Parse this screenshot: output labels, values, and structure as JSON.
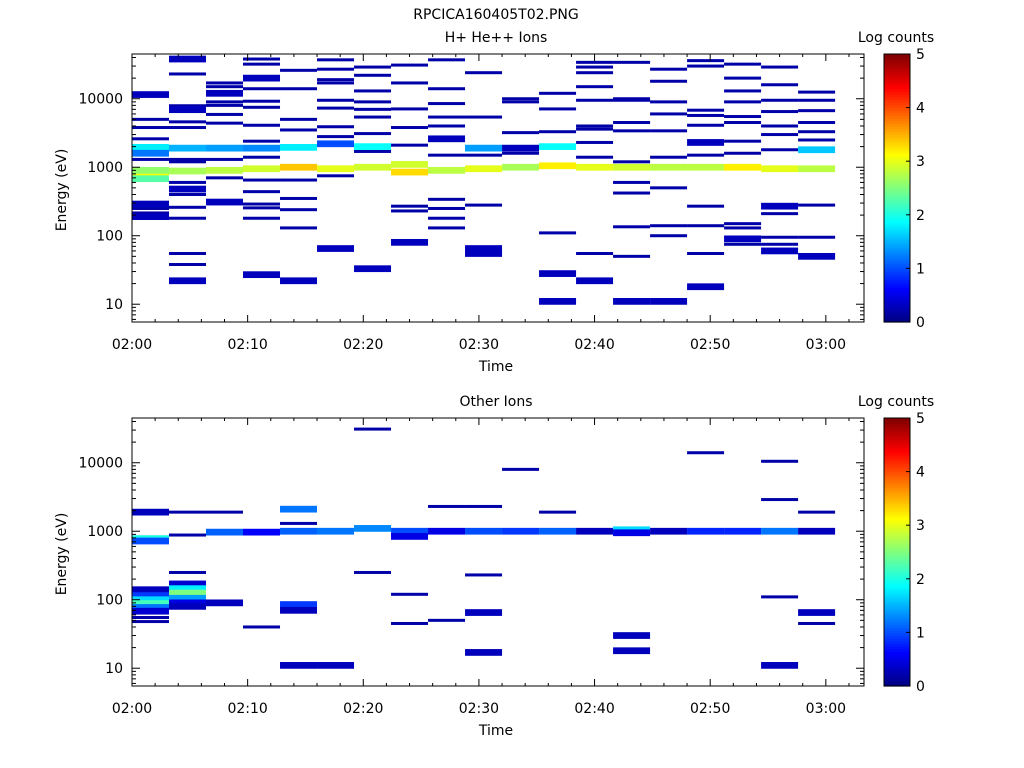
{
  "figure_title": "RPCICA160405T02.PNG",
  "colors": {
    "colormap": [
      "#00007f",
      "#0000ff",
      "#007fff",
      "#00ffff",
      "#7fff7f",
      "#ffff00",
      "#ff7f00",
      "#ff0000",
      "#7f0000"
    ]
  },
  "chart_data": [
    {
      "type": "heatmap",
      "title": "H+ He++ Ions",
      "xlabel": "Time",
      "ylabel": "Energy (eV)",
      "colorbar_label": "Log counts",
      "colorbar_ticks": [
        "0",
        "1",
        "2",
        "3",
        "4",
        "5"
      ],
      "clim": [
        0,
        5
      ],
      "y_scale": "log",
      "ylim": [
        5.5,
        45000
      ],
      "y_ticks": [
        "10",
        "100",
        "1000",
        "10000"
      ],
      "x_range_minutes": [
        0,
        63.3
      ],
      "x_ticks": [
        "02:00",
        "02:10",
        "02:20",
        "02:30",
        "02:40",
        "02:50",
        "03:00"
      ],
      "column_width_min": 3.2,
      "cells": [
        {
          "t": 0,
          "e": 780,
          "v": 3.1
        },
        {
          "t": 0,
          "e": 900,
          "v": 2.6
        },
        {
          "t": 0,
          "e": 680,
          "v": 2.3
        },
        {
          "t": 0,
          "e": 1950,
          "v": 1.8
        },
        {
          "t": 0,
          "e": 1600,
          "v": 1.2
        },
        {
          "t": 0,
          "e": 11500,
          "v": 0.3
        },
        {
          "t": 0,
          "e": 290,
          "v": 0.3
        },
        {
          "t": 0,
          "e": 190,
          "v": 0.3
        },
        {
          "t": 3.2,
          "e": 880,
          "v": 2.7
        },
        {
          "t": 3.2,
          "e": 1900,
          "v": 1.5
        },
        {
          "t": 3.2,
          "e": 7000,
          "v": 0.3
        },
        {
          "t": 3.2,
          "e": 38000,
          "v": 0.3
        },
        {
          "t": 3.2,
          "e": 22,
          "v": 0.3
        },
        {
          "t": 3.2,
          "e": 480,
          "v": 0.3
        },
        {
          "t": 6.4,
          "e": 900,
          "v": 2.8
        },
        {
          "t": 6.4,
          "e": 1900,
          "v": 1.4
        },
        {
          "t": 6.4,
          "e": 12000,
          "v": 0.3
        },
        {
          "t": 6.4,
          "e": 310,
          "v": 0.3
        },
        {
          "t": 9.6,
          "e": 950,
          "v": 2.9
        },
        {
          "t": 9.6,
          "e": 1900,
          "v": 1.3
        },
        {
          "t": 9.6,
          "e": 27,
          "v": 0.3
        },
        {
          "t": 9.6,
          "e": 20000,
          "v": 0.3
        },
        {
          "t": 12.8,
          "e": 1000,
          "v": 3.4
        },
        {
          "t": 12.8,
          "e": 1950,
          "v": 1.8
        },
        {
          "t": 12.8,
          "e": 22,
          "v": 0.3
        },
        {
          "t": 16.0,
          "e": 950,
          "v": 3.0
        },
        {
          "t": 16.0,
          "e": 2200,
          "v": 1.0
        },
        {
          "t": 16.0,
          "e": 65,
          "v": 0.3
        },
        {
          "t": 19.2,
          "e": 1000,
          "v": 2.9
        },
        {
          "t": 19.2,
          "e": 2000,
          "v": 1.9
        },
        {
          "t": 19.2,
          "e": 33,
          "v": 0.3
        },
        {
          "t": 22.4,
          "e": 850,
          "v": 3.3
        },
        {
          "t": 22.4,
          "e": 1100,
          "v": 2.9
        },
        {
          "t": 22.4,
          "e": 80,
          "v": 0.3
        },
        {
          "t": 25.6,
          "e": 900,
          "v": 2.8
        },
        {
          "t": 25.6,
          "e": 2600,
          "v": 0.3
        },
        {
          "t": 28.8,
          "e": 950,
          "v": 3.0
        },
        {
          "t": 28.8,
          "e": 1900,
          "v": 1.4
        },
        {
          "t": 28.8,
          "e": 65,
          "v": 0.3
        },
        {
          "t": 28.8,
          "e": 55,
          "v": 0.3
        },
        {
          "t": 32.0,
          "e": 1000,
          "v": 2.7
        },
        {
          "t": 32.0,
          "e": 1900,
          "v": 0.3
        },
        {
          "t": 35.2,
          "e": 1050,
          "v": 3.2
        },
        {
          "t": 35.2,
          "e": 2000,
          "v": 1.9
        },
        {
          "t": 35.2,
          "e": 11,
          "v": 0.3
        },
        {
          "t": 35.2,
          "e": 28,
          "v": 0.3
        },
        {
          "t": 38.4,
          "e": 1000,
          "v": 3.0
        },
        {
          "t": 38.4,
          "e": 22,
          "v": 0.3
        },
        {
          "t": 41.6,
          "e": 1000,
          "v": 2.9
        },
        {
          "t": 41.6,
          "e": 11,
          "v": 0.3
        },
        {
          "t": 44.8,
          "e": 1000,
          "v": 2.8
        },
        {
          "t": 44.8,
          "e": 11,
          "v": 0.3
        },
        {
          "t": 48.0,
          "e": 1000,
          "v": 2.8
        },
        {
          "t": 48.0,
          "e": 18,
          "v": 0.3
        },
        {
          "t": 48.0,
          "e": 2300,
          "v": 0.3
        },
        {
          "t": 51.2,
          "e": 1000,
          "v": 3.2
        },
        {
          "t": 51.2,
          "e": 90,
          "v": 0.3
        },
        {
          "t": 54.4,
          "e": 950,
          "v": 3.0
        },
        {
          "t": 54.4,
          "e": 270,
          "v": 0.3
        },
        {
          "t": 54.4,
          "e": 60,
          "v": 0.3
        },
        {
          "t": 57.6,
          "e": 950,
          "v": 2.8
        },
        {
          "t": 57.6,
          "e": 1800,
          "v": 1.6
        },
        {
          "t": 57.6,
          "e": 50,
          "v": 0.3
        }
      ],
      "lines": [
        {
          "t": 0,
          "e": [
            5000,
            3800,
            2600,
            1300,
            250,
            215
          ]
        },
        {
          "t": 3.2,
          "e": [
            23000,
            7900,
            6500,
            4600,
            3800,
            1300,
            1200,
            600,
            400,
            260,
            180,
            55,
            38
          ]
        },
        {
          "t": 6.4,
          "e": [
            17000,
            15000,
            9000,
            8000,
            5900,
            4400,
            1300,
            700
          ]
        },
        {
          "t": 9.6,
          "e": [
            38000,
            32000,
            14000,
            9200,
            7500,
            4100,
            2400,
            1400,
            650,
            440,
            290,
            255,
            180
          ]
        },
        {
          "t": 12.8,
          "e": [
            26000,
            14000,
            5000,
            3500,
            650,
            350,
            240,
            130
          ]
        },
        {
          "t": 16.0,
          "e": [
            37000,
            27000,
            19000,
            17000,
            9500,
            7300,
            3900,
            2800,
            750
          ]
        },
        {
          "t": 19.2,
          "e": [
            29000,
            22000,
            13000,
            9000,
            7000,
            5400,
            3100,
            1700
          ]
        },
        {
          "t": 22.4,
          "e": [
            31000,
            17000,
            7100,
            3800,
            2100,
            270,
            230
          ]
        },
        {
          "t": 25.6,
          "e": [
            37000,
            14000,
            8500,
            5400,
            4000,
            1500,
            340,
            250,
            180,
            130
          ]
        },
        {
          "t": 28.8,
          "e": [
            24000,
            5400,
            1500,
            280
          ]
        },
        {
          "t": 32.0,
          "e": [
            10000,
            9000,
            3200,
            1600
          ]
        },
        {
          "t": 35.2,
          "e": [
            12000,
            7100,
            3300,
            110
          ]
        },
        {
          "t": 38.4,
          "e": [
            34000,
            29000,
            24000,
            15000,
            9500,
            4000,
            3600,
            2300,
            1400,
            55
          ]
        },
        {
          "t": 41.6,
          "e": [
            34000,
            10000,
            9500,
            4500,
            3400,
            1200,
            600,
            420,
            135,
            50
          ]
        },
        {
          "t": 44.8,
          "e": [
            27000,
            18000,
            9000,
            6000,
            3400,
            1400,
            500,
            140,
            100
          ]
        },
        {
          "t": 48.0,
          "e": [
            36000,
            30000,
            6800,
            5700,
            4100,
            1500,
            270,
            140,
            55
          ]
        },
        {
          "t": 51.2,
          "e": [
            32000,
            20000,
            13000,
            9000,
            5500,
            4500,
            2400,
            1600,
            150,
            130,
            75
          ]
        },
        {
          "t": 54.4,
          "e": [
            29000,
            16000,
            9500,
            6500,
            4000,
            3000,
            1800,
            210,
            95,
            75
          ]
        },
        {
          "t": 57.6,
          "e": [
            12500,
            9500,
            6700,
            4500,
            3300,
            2500,
            280,
            95
          ]
        }
      ]
    },
    {
      "type": "heatmap",
      "title": "Other Ions",
      "xlabel": "Time",
      "ylabel": "Energy (eV)",
      "colorbar_label": "Log counts",
      "colorbar_ticks": [
        "0",
        "1",
        "2",
        "3",
        "4",
        "5"
      ],
      "clim": [
        0,
        5
      ],
      "y_scale": "log",
      "ylim": [
        5.5,
        45000
      ],
      "y_ticks": [
        "10",
        "100",
        "1000",
        "10000"
      ],
      "x_range_minutes": [
        0,
        63.3
      ],
      "x_ticks": [
        "02:00",
        "02:10",
        "02:20",
        "02:30",
        "02:40",
        "02:50",
        "03:00"
      ],
      "column_width_min": 3.2,
      "cells": [
        {
          "t": 0,
          "e": 140,
          "v": 0.3
        },
        {
          "t": 0,
          "e": 115,
          "v": 0.9
        },
        {
          "t": 0,
          "e": 100,
          "v": 1.7
        },
        {
          "t": 0,
          "e": 88,
          "v": 2.2
        },
        {
          "t": 0,
          "e": 77,
          "v": 1.2
        },
        {
          "t": 0,
          "e": 68,
          "v": 0.4
        },
        {
          "t": 0,
          "e": 780,
          "v": 2.0
        },
        {
          "t": 0,
          "e": 720,
          "v": 1.0
        },
        {
          "t": 0,
          "e": 1900,
          "v": 0.3
        },
        {
          "t": 3.2,
          "e": 170,
          "v": 0.4
        },
        {
          "t": 3.2,
          "e": 145,
          "v": 1.8
        },
        {
          "t": 3.2,
          "e": 125,
          "v": 2.5
        },
        {
          "t": 3.2,
          "e": 105,
          "v": 1.4
        },
        {
          "t": 3.2,
          "e": 90,
          "v": 0.5
        },
        {
          "t": 3.2,
          "e": 80,
          "v": 0.3
        },
        {
          "t": 6.4,
          "e": 90,
          "v": 0.3
        },
        {
          "t": 6.4,
          "e": 970,
          "v": 1.1
        },
        {
          "t": 9.6,
          "e": 970,
          "v": 0.6
        },
        {
          "t": 12.8,
          "e": 2100,
          "v": 1.2
        },
        {
          "t": 12.8,
          "e": 1000,
          "v": 1.1
        },
        {
          "t": 12.8,
          "e": 85,
          "v": 0.9
        },
        {
          "t": 12.8,
          "e": 70,
          "v": 0.3
        },
        {
          "t": 12.8,
          "e": 11,
          "v": 0.3
        },
        {
          "t": 16.0,
          "e": 1000,
          "v": 1.2
        },
        {
          "t": 16.0,
          "e": 11,
          "v": 0.3
        },
        {
          "t": 19.2,
          "e": 1100,
          "v": 1.3
        },
        {
          "t": 22.4,
          "e": 1000,
          "v": 1.0
        },
        {
          "t": 22.4,
          "e": 840,
          "v": 0.5
        },
        {
          "t": 25.6,
          "e": 1000,
          "v": 0.5
        },
        {
          "t": 28.8,
          "e": 1000,
          "v": 1.0
        },
        {
          "t": 28.8,
          "e": 65,
          "v": 0.3
        },
        {
          "t": 28.8,
          "e": 17,
          "v": 0.3
        },
        {
          "t": 32.0,
          "e": 1000,
          "v": 0.9
        },
        {
          "t": 35.2,
          "e": 1000,
          "v": 1.1
        },
        {
          "t": 38.4,
          "e": 1000,
          "v": 0.3
        },
        {
          "t": 41.6,
          "e": 1050,
          "v": 1.7
        },
        {
          "t": 41.6,
          "e": 950,
          "v": 0.5
        },
        {
          "t": 41.6,
          "e": 30,
          "v": 0.3
        },
        {
          "t": 41.6,
          "e": 18,
          "v": 0.3
        },
        {
          "t": 44.8,
          "e": 1000,
          "v": 0.3
        },
        {
          "t": 48.0,
          "e": 1000,
          "v": 0.8
        },
        {
          "t": 51.2,
          "e": 1000,
          "v": 0.8
        },
        {
          "t": 54.4,
          "e": 1000,
          "v": 1.2
        },
        {
          "t": 54.4,
          "e": 11,
          "v": 0.3
        },
        {
          "t": 57.6,
          "e": 1000,
          "v": 0.3
        },
        {
          "t": 57.6,
          "e": 65,
          "v": 0.3
        }
      ],
      "lines": [
        {
          "t": 0,
          "e": [
            55,
            48
          ]
        },
        {
          "t": 3.2,
          "e": [
            1900,
            880,
            250
          ]
        },
        {
          "t": 6.4,
          "e": [
            1900
          ]
        },
        {
          "t": 9.6,
          "e": [
            40
          ]
        },
        {
          "t": 12.8,
          "e": [
            1300
          ]
        },
        {
          "t": 19.2,
          "e": [
            31000,
            250
          ]
        },
        {
          "t": 22.4,
          "e": [
            120,
            45
          ]
        },
        {
          "t": 25.6,
          "e": [
            2300,
            50
          ]
        },
        {
          "t": 28.8,
          "e": [
            2300,
            230
          ]
        },
        {
          "t": 32.0,
          "e": [
            8000
          ]
        },
        {
          "t": 35.2,
          "e": [
            1900
          ]
        },
        {
          "t": 48.0,
          "e": [
            14000
          ]
        },
        {
          "t": 54.4,
          "e": [
            10500,
            2900,
            110
          ]
        },
        {
          "t": 57.6,
          "e": [
            1900,
            45
          ]
        }
      ]
    }
  ]
}
